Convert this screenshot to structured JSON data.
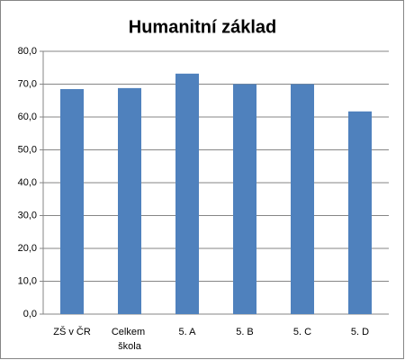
{
  "chart_data": {
    "type": "bar",
    "title": "Humanitní základ",
    "categories": [
      "ZŠ v ČR",
      "Celkem škola",
      "5. A",
      "5. B",
      "5. C",
      "5. D"
    ],
    "values": [
      68.5,
      68.8,
      73.2,
      70.0,
      70.0,
      61.7
    ],
    "color": "#4f81bd",
    "ylim": [
      0,
      80
    ],
    "yticks": [
      {
        "value": 0,
        "label": "0,0"
      },
      {
        "value": 10,
        "label": "10,0"
      },
      {
        "value": 20,
        "label": "20,0"
      },
      {
        "value": 30,
        "label": "30,0"
      },
      {
        "value": 40,
        "label": "40,0"
      },
      {
        "value": 50,
        "label": "50,0"
      },
      {
        "value": 60,
        "label": "60,0"
      },
      {
        "value": 70,
        "label": "70,0"
      },
      {
        "value": 80,
        "label": "80,0"
      }
    ],
    "grid": true
  }
}
